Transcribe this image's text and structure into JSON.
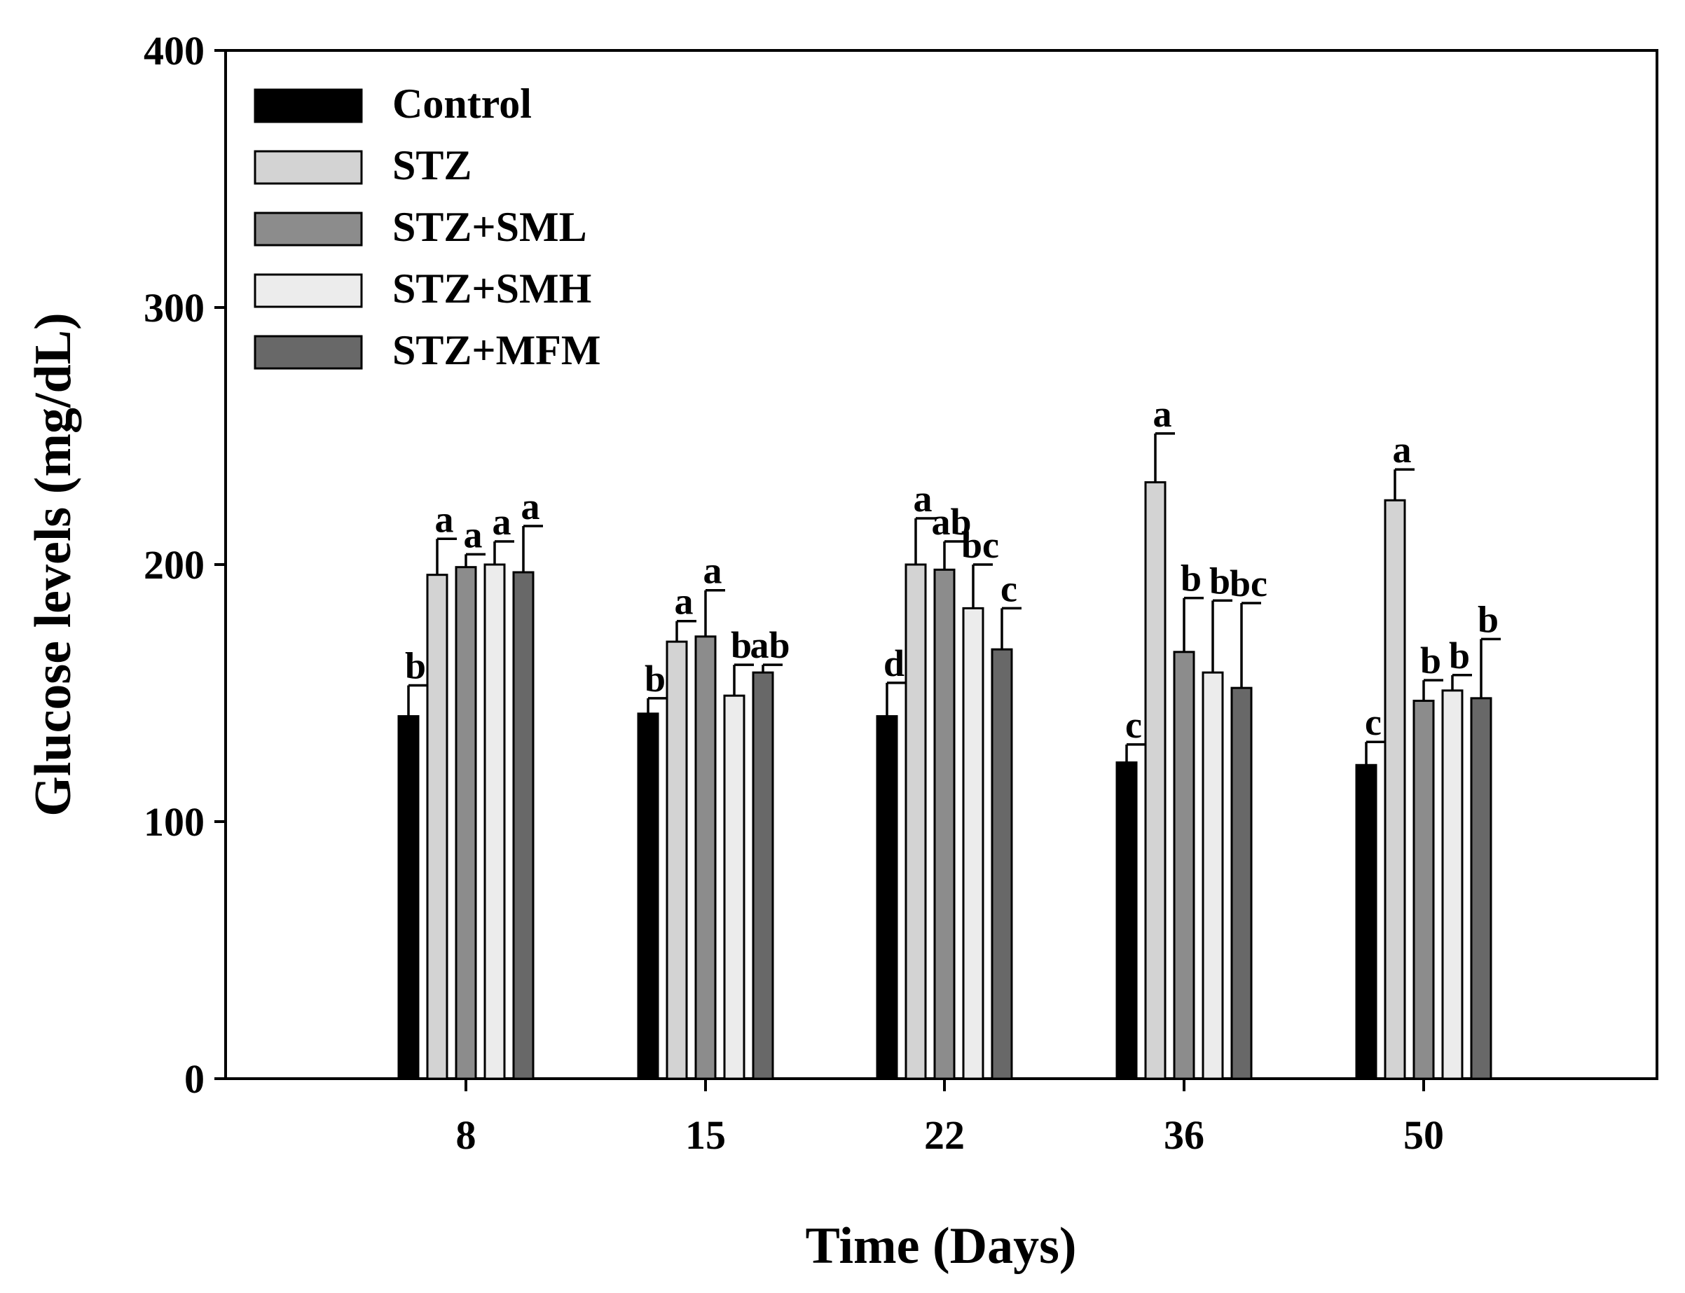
{
  "chart_data": {
    "type": "bar",
    "xlabel": "Time (Days)",
    "ylabel": "Glucose levels (mg/dL)",
    "ylim": [
      0,
      400
    ],
    "yticks": [
      0,
      100,
      200,
      300,
      400
    ],
    "categories": [
      "8",
      "15",
      "22",
      "36",
      "50"
    ],
    "legend_position": "top-left",
    "series": [
      {
        "name": "Control",
        "color": "#000000",
        "values": [
          141,
          142,
          141,
          123,
          122
        ],
        "errors": [
          12,
          6,
          13,
          7,
          9
        ],
        "letters": [
          "b",
          "b",
          "d",
          "c",
          "c"
        ]
      },
      {
        "name": "STZ",
        "color": "#d3d3d3",
        "values": [
          196,
          170,
          200,
          232,
          225
        ],
        "errors": [
          14,
          8,
          18,
          19,
          12
        ],
        "letters": [
          "a",
          "a",
          "a",
          "a",
          "a"
        ]
      },
      {
        "name": "STZ+SML",
        "color": "#8c8c8c",
        "values": [
          199,
          172,
          198,
          166,
          147
        ],
        "errors": [
          5,
          18,
          11,
          21,
          8
        ],
        "letters": [
          "a",
          "a",
          "ab",
          "b",
          "b"
        ]
      },
      {
        "name": "STZ+SMH",
        "color": "#ececec",
        "values": [
          200,
          149,
          183,
          158,
          151
        ],
        "errors": [
          9,
          12,
          17,
          28,
          6
        ],
        "letters": [
          "a",
          "b",
          "bc",
          "b",
          "b"
        ]
      },
      {
        "name": "STZ+MFM",
        "color": "#686868",
        "values": [
          197,
          158,
          167,
          152,
          148
        ],
        "errors": [
          18,
          3,
          16,
          33,
          23
        ],
        "letters": [
          "a",
          "ab",
          "c",
          "bc",
          "b"
        ]
      }
    ]
  }
}
